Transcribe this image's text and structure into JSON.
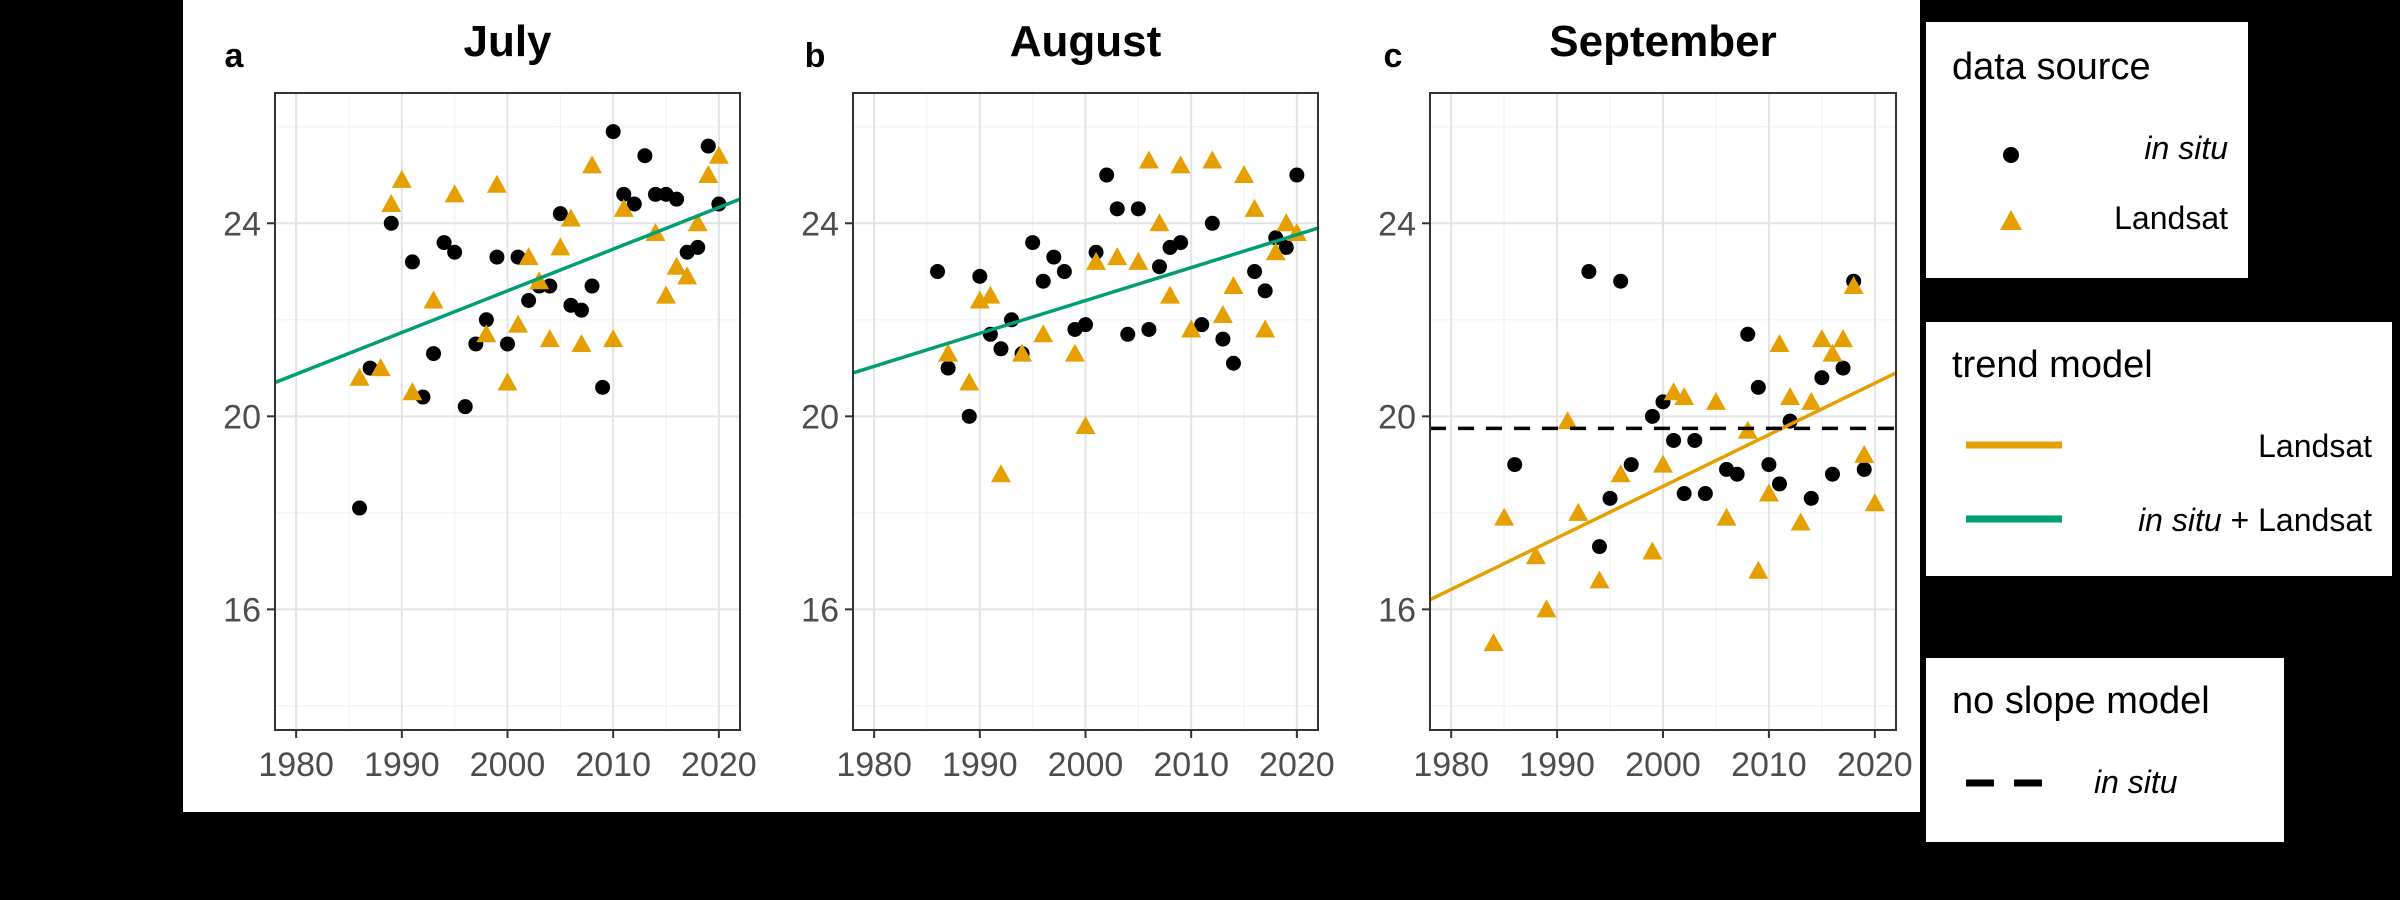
{
  "chart_data": [
    {
      "type": "scatter",
      "panel_tag": "a",
      "title": "July",
      "xlim": [
        1978,
        2022
      ],
      "ylim": [
        13.5,
        26.7
      ],
      "xticks": [
        1980,
        1990,
        2000,
        2010,
        2020
      ],
      "yticks": [
        16,
        20,
        24
      ],
      "grid": true,
      "series": [
        {
          "name": "in situ",
          "marker": "circle",
          "color": "#000000",
          "points": [
            [
              1986,
              18.1
            ],
            [
              1987,
              21.0
            ],
            [
              1989,
              24.0
            ],
            [
              1991,
              23.2
            ],
            [
              1992,
              20.4
            ],
            [
              1993,
              21.3
            ],
            [
              1994,
              23.6
            ],
            [
              1995,
              23.4
            ],
            [
              1996,
              20.2
            ],
            [
              1997,
              21.5
            ],
            [
              1998,
              22.0
            ],
            [
              1999,
              23.3
            ],
            [
              2000,
              21.5
            ],
            [
              2001,
              23.3
            ],
            [
              2002,
              22.4
            ],
            [
              2003,
              22.7
            ],
            [
              2004,
              22.7
            ],
            [
              2005,
              24.2
            ],
            [
              2006,
              22.3
            ],
            [
              2007,
              22.2
            ],
            [
              2008,
              22.7
            ],
            [
              2009,
              20.6
            ],
            [
              2010,
              25.9
            ],
            [
              2011,
              24.6
            ],
            [
              2012,
              24.4
            ],
            [
              2013,
              25.4
            ],
            [
              2014,
              24.6
            ],
            [
              2015,
              24.6
            ],
            [
              2016,
              24.5
            ],
            [
              2017,
              23.4
            ],
            [
              2018,
              23.5
            ],
            [
              2019,
              25.6
            ],
            [
              2020,
              24.4
            ]
          ]
        },
        {
          "name": "Landsat",
          "marker": "triangle",
          "color": "#E69F00",
          "points": [
            [
              1986,
              20.8
            ],
            [
              1988,
              21.0
            ],
            [
              1989,
              24.4
            ],
            [
              1990,
              24.9
            ],
            [
              1991,
              20.5
            ],
            [
              1993,
              22.4
            ],
            [
              1995,
              24.6
            ],
            [
              1998,
              21.7
            ],
            [
              1999,
              24.8
            ],
            [
              2000,
              20.7
            ],
            [
              2001,
              21.9
            ],
            [
              2002,
              23.3
            ],
            [
              2003,
              22.8
            ],
            [
              2004,
              21.6
            ],
            [
              2005,
              23.5
            ],
            [
              2006,
              24.1
            ],
            [
              2007,
              21.5
            ],
            [
              2008,
              25.2
            ],
            [
              2010,
              21.6
            ],
            [
              2011,
              24.3
            ],
            [
              2014,
              23.8
            ],
            [
              2015,
              22.5
            ],
            [
              2016,
              23.1
            ],
            [
              2017,
              22.9
            ],
            [
              2018,
              24.0
            ],
            [
              2019,
              25.0
            ],
            [
              2020,
              25.4
            ]
          ]
        }
      ],
      "trend_lines": [
        {
          "model": "in situ + Landsat",
          "color": "#009E73",
          "style": "solid",
          "x": [
            1978,
            2022
          ],
          "y": [
            20.7,
            24.5
          ]
        }
      ]
    },
    {
      "type": "scatter",
      "panel_tag": "b",
      "title": "August",
      "xlim": [
        1978,
        2022
      ],
      "ylim": [
        13.5,
        26.7
      ],
      "xticks": [
        1980,
        1990,
        2000,
        2010,
        2020
      ],
      "yticks": [
        16,
        20,
        24
      ],
      "grid": true,
      "series": [
        {
          "name": "in situ",
          "marker": "circle",
          "color": "#000000",
          "points": [
            [
              1986,
              23.0
            ],
            [
              1987,
              21.0
            ],
            [
              1989,
              20.0
            ],
            [
              1990,
              22.9
            ],
            [
              1991,
              21.7
            ],
            [
              1992,
              21.4
            ],
            [
              1993,
              22.0
            ],
            [
              1994,
              21.3
            ],
            [
              1995,
              23.6
            ],
            [
              1996,
              22.8
            ],
            [
              1997,
              23.3
            ],
            [
              1998,
              23.0
            ],
            [
              1999,
              21.8
            ],
            [
              2000,
              21.9
            ],
            [
              2001,
              23.4
            ],
            [
              2002,
              25.0
            ],
            [
              2003,
              24.3
            ],
            [
              2004,
              21.7
            ],
            [
              2005,
              24.3
            ],
            [
              2006,
              21.8
            ],
            [
              2007,
              23.1
            ],
            [
              2008,
              23.5
            ],
            [
              2009,
              23.6
            ],
            [
              2011,
              21.9
            ],
            [
              2012,
              24.0
            ],
            [
              2013,
              21.6
            ],
            [
              2014,
              21.1
            ],
            [
              2016,
              23.0
            ],
            [
              2017,
              22.6
            ],
            [
              2018,
              23.7
            ],
            [
              2019,
              23.5
            ],
            [
              2020,
              25.0
            ]
          ]
        },
        {
          "name": "Landsat",
          "marker": "triangle",
          "color": "#E69F00",
          "points": [
            [
              1987,
              21.3
            ],
            [
              1989,
              20.7
            ],
            [
              1990,
              22.4
            ],
            [
              1991,
              22.5
            ],
            [
              1992,
              18.8
            ],
            [
              1994,
              21.3
            ],
            [
              1996,
              21.7
            ],
            [
              1999,
              21.3
            ],
            [
              2000,
              19.8
            ],
            [
              2001,
              23.2
            ],
            [
              2003,
              23.3
            ],
            [
              2005,
              23.2
            ],
            [
              2006,
              25.3
            ],
            [
              2007,
              24.0
            ],
            [
              2008,
              22.5
            ],
            [
              2009,
              25.2
            ],
            [
              2010,
              21.8
            ],
            [
              2012,
              25.3
            ],
            [
              2013,
              22.1
            ],
            [
              2014,
              22.7
            ],
            [
              2015,
              25.0
            ],
            [
              2016,
              24.3
            ],
            [
              2017,
              21.8
            ],
            [
              2018,
              23.4
            ],
            [
              2019,
              24.0
            ],
            [
              2020,
              23.8
            ]
          ]
        }
      ],
      "trend_lines": [
        {
          "model": "in situ + Landsat",
          "color": "#009E73",
          "style": "solid",
          "x": [
            1978,
            2022
          ],
          "y": [
            20.9,
            23.9
          ]
        }
      ]
    },
    {
      "type": "scatter",
      "panel_tag": "c",
      "title": "September",
      "xlim": [
        1978,
        2022
      ],
      "ylim": [
        13.5,
        26.7
      ],
      "xticks": [
        1980,
        1990,
        2000,
        2010,
        2020
      ],
      "yticks": [
        16,
        20,
        24
      ],
      "grid": true,
      "series": [
        {
          "name": "in situ",
          "marker": "circle",
          "color": "#000000",
          "points": [
            [
              1986,
              19.0
            ],
            [
              1993,
              23.0
            ],
            [
              1994,
              17.3
            ],
            [
              1995,
              18.3
            ],
            [
              1996,
              22.8
            ],
            [
              1997,
              19.0
            ],
            [
              1999,
              20.0
            ],
            [
              2000,
              20.3
            ],
            [
              2001,
              19.5
            ],
            [
              2002,
              18.4
            ],
            [
              2003,
              19.5
            ],
            [
              2004,
              18.4
            ],
            [
              2006,
              18.9
            ],
            [
              2007,
              18.8
            ],
            [
              2008,
              21.7
            ],
            [
              2009,
              20.6
            ],
            [
              2010,
              19.0
            ],
            [
              2011,
              18.6
            ],
            [
              2012,
              19.9
            ],
            [
              2014,
              18.3
            ],
            [
              2015,
              20.8
            ],
            [
              2016,
              18.8
            ],
            [
              2017,
              21.0
            ],
            [
              2018,
              22.8
            ],
            [
              2019,
              18.9
            ]
          ]
        },
        {
          "name": "Landsat",
          "marker": "triangle",
          "color": "#E69F00",
          "points": [
            [
              1984,
              15.3
            ],
            [
              1985,
              17.9
            ],
            [
              1988,
              17.1
            ],
            [
              1989,
              16.0
            ],
            [
              1991,
              19.9
            ],
            [
              1992,
              18.0
            ],
            [
              1994,
              16.6
            ],
            [
              1996,
              18.8
            ],
            [
              1999,
              17.2
            ],
            [
              2000,
              19.0
            ],
            [
              2001,
              20.5
            ],
            [
              2002,
              20.4
            ],
            [
              2005,
              20.3
            ],
            [
              2006,
              17.9
            ],
            [
              2008,
              19.7
            ],
            [
              2009,
              16.8
            ],
            [
              2010,
              18.4
            ],
            [
              2011,
              21.5
            ],
            [
              2012,
              20.4
            ],
            [
              2013,
              17.8
            ],
            [
              2014,
              20.3
            ],
            [
              2015,
              21.6
            ],
            [
              2016,
              21.3
            ],
            [
              2017,
              21.6
            ],
            [
              2018,
              22.7
            ],
            [
              2019,
              19.2
            ],
            [
              2020,
              18.2
            ]
          ]
        }
      ],
      "trend_lines": [
        {
          "model": "Landsat",
          "color": "#E69F00",
          "style": "solid",
          "x": [
            1978,
            2022
          ],
          "y": [
            16.2,
            20.9
          ]
        },
        {
          "model": "in situ",
          "color": "#000000",
          "style": "dashed",
          "x": [
            1978,
            2022
          ],
          "y": [
            19.75,
            19.75
          ]
        }
      ]
    }
  ],
  "legends": {
    "data_source": {
      "title": "data source",
      "items": [
        {
          "label": "in situ",
          "italic": true,
          "key": "circle",
          "color": "#000000"
        },
        {
          "label": "Landsat",
          "italic": false,
          "key": "triangle",
          "color": "#E69F00"
        }
      ]
    },
    "trend_model": {
      "title": "trend model",
      "items": [
        {
          "label": "Landsat",
          "key": "line",
          "color": "#E69F00"
        },
        {
          "label_italic": "in situ",
          "label_rest": " + Landsat",
          "key": "line",
          "color": "#009E73"
        }
      ]
    },
    "no_slope_model": {
      "title": "no slope model",
      "items": [
        {
          "label": "in situ",
          "italic": true,
          "key": "dashed-line",
          "color": "#000000"
        }
      ]
    }
  }
}
